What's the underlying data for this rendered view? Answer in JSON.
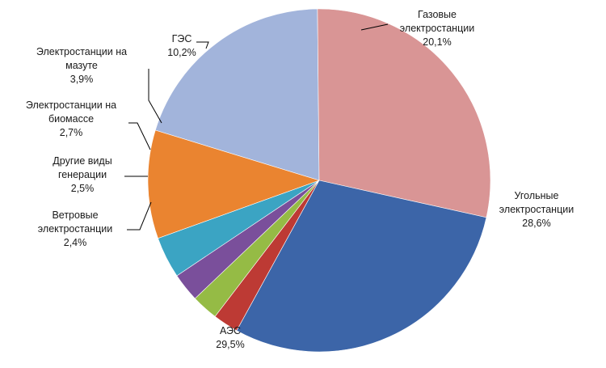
{
  "chart_data": {
    "type": "pie",
    "title": "",
    "legend": "none",
    "slices": [
      {
        "label": [
          "Газовые",
          "электростанции"
        ],
        "value_label": "20,1%",
        "value": 20.1,
        "color": "#A2B4DB"
      },
      {
        "label": [
          "Угольные",
          "электростанции"
        ],
        "value_label": "28,6%",
        "value": 28.6,
        "color": "#D99595"
      },
      {
        "label": [
          "АЭС"
        ],
        "value_label": "29,5%",
        "value": 29.5,
        "color": "#3C65A8"
      },
      {
        "label": [
          "Ветровые",
          "электростанции"
        ],
        "value_label": "2,4%",
        "value": 2.4,
        "color": "#BD3A34"
      },
      {
        "label": [
          "Другие виды",
          "генерации"
        ],
        "value_label": "2,5%",
        "value": 2.5,
        "color": "#95BB45"
      },
      {
        "label": [
          "Электростанции на",
          "биомассе"
        ],
        "value_label": "2,7%",
        "value": 2.7,
        "color": "#7A4F9B"
      },
      {
        "label": [
          "Электростанции на",
          "мазуте"
        ],
        "value_label": "3,9%",
        "value": 3.9,
        "color": "#3BA4C3"
      },
      {
        "label": [
          "ГЭС"
        ],
        "value_label": "10,2%",
        "value": 10.2,
        "color": "#EA8430"
      }
    ]
  }
}
